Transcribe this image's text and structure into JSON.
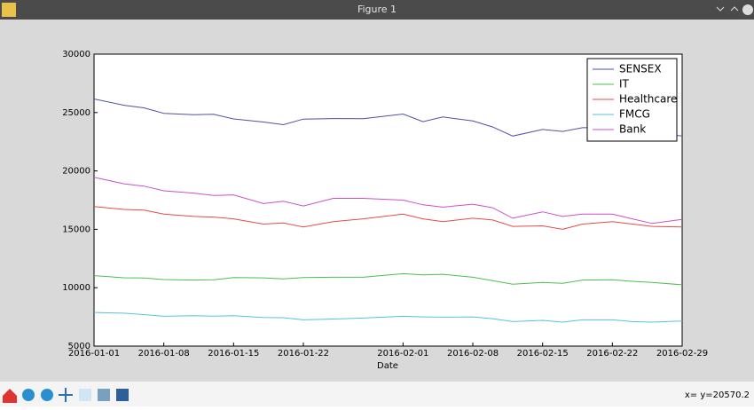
{
  "window": {
    "title": "Figure 1",
    "status": "x= y=20570.2"
  },
  "chart_data": {
    "type": "line",
    "xlabel": "Date",
    "x": [
      "2016-01-01",
      "2016-01-04",
      "2016-01-06",
      "2016-01-08",
      "2016-01-11",
      "2016-01-13",
      "2016-01-15",
      "2016-01-18",
      "2016-01-20",
      "2016-01-22",
      "2016-01-25",
      "2016-01-28",
      "2016-02-01",
      "2016-02-03",
      "2016-02-05",
      "2016-02-08",
      "2016-02-10",
      "2016-02-12",
      "2016-02-15",
      "2016-02-17",
      "2016-02-19",
      "2016-02-22",
      "2016-02-24",
      "2016-02-26",
      "2016-02-29"
    ],
    "series": [
      {
        "name": "SENSEX",
        "color": "#4f4fa8",
        "values": [
          26160,
          25620,
          25400,
          24930,
          24820,
          24850,
          24450,
          24190,
          23960,
          24440,
          24480,
          24470,
          24870,
          24220,
          24620,
          24280,
          23760,
          22990,
          23550,
          23380,
          23700,
          23700,
          23100,
          23150,
          23000
        ]
      },
      {
        "name": "IT",
        "color": "#4cbf4c",
        "values": [
          11030,
          10850,
          10830,
          10700,
          10650,
          10680,
          10870,
          10840,
          10750,
          10870,
          10900,
          10900,
          11200,
          11100,
          11150,
          10900,
          10600,
          10300,
          10450,
          10380,
          10650,
          10680,
          10550,
          10450,
          10250
        ]
      },
      {
        "name": "Healthcare",
        "color": "#e84a4a",
        "values": [
          16950,
          16700,
          16650,
          16300,
          16100,
          16050,
          15900,
          15450,
          15550,
          15200,
          15650,
          15900,
          16300,
          15900,
          15650,
          15950,
          15800,
          15250,
          15300,
          15000,
          15450,
          15650,
          15450,
          15250,
          15200
        ]
      },
      {
        "name": "FMCG",
        "color": "#55c3de",
        "values": [
          7880,
          7820,
          7700,
          7550,
          7600,
          7560,
          7600,
          7450,
          7430,
          7250,
          7320,
          7400,
          7550,
          7500,
          7480,
          7500,
          7350,
          7100,
          7200,
          7050,
          7250,
          7250,
          7100,
          7050,
          7150
        ]
      },
      {
        "name": "Bank",
        "color": "#cc4fcc",
        "values": [
          19450,
          18900,
          18700,
          18300,
          18100,
          17900,
          17950,
          17200,
          17400,
          17000,
          17650,
          17650,
          17500,
          17100,
          16900,
          17150,
          16850,
          15950,
          16500,
          16100,
          16300,
          16300,
          15900,
          15500,
          15850
        ]
      }
    ],
    "xlim": [
      "2016-01-01",
      "2016-02-29"
    ],
    "xticks": [
      "2016-01-01",
      "2016-01-08",
      "2016-01-15",
      "2016-01-22",
      "2016-02-01",
      "2016-02-08",
      "2016-02-15",
      "2016-02-22",
      "2016-02-29"
    ],
    "ylim": [
      5000,
      30000
    ],
    "yticks": [
      5000,
      10000,
      15000,
      20000,
      25000,
      30000
    ],
    "grid": false,
    "legend": "upper-right"
  }
}
